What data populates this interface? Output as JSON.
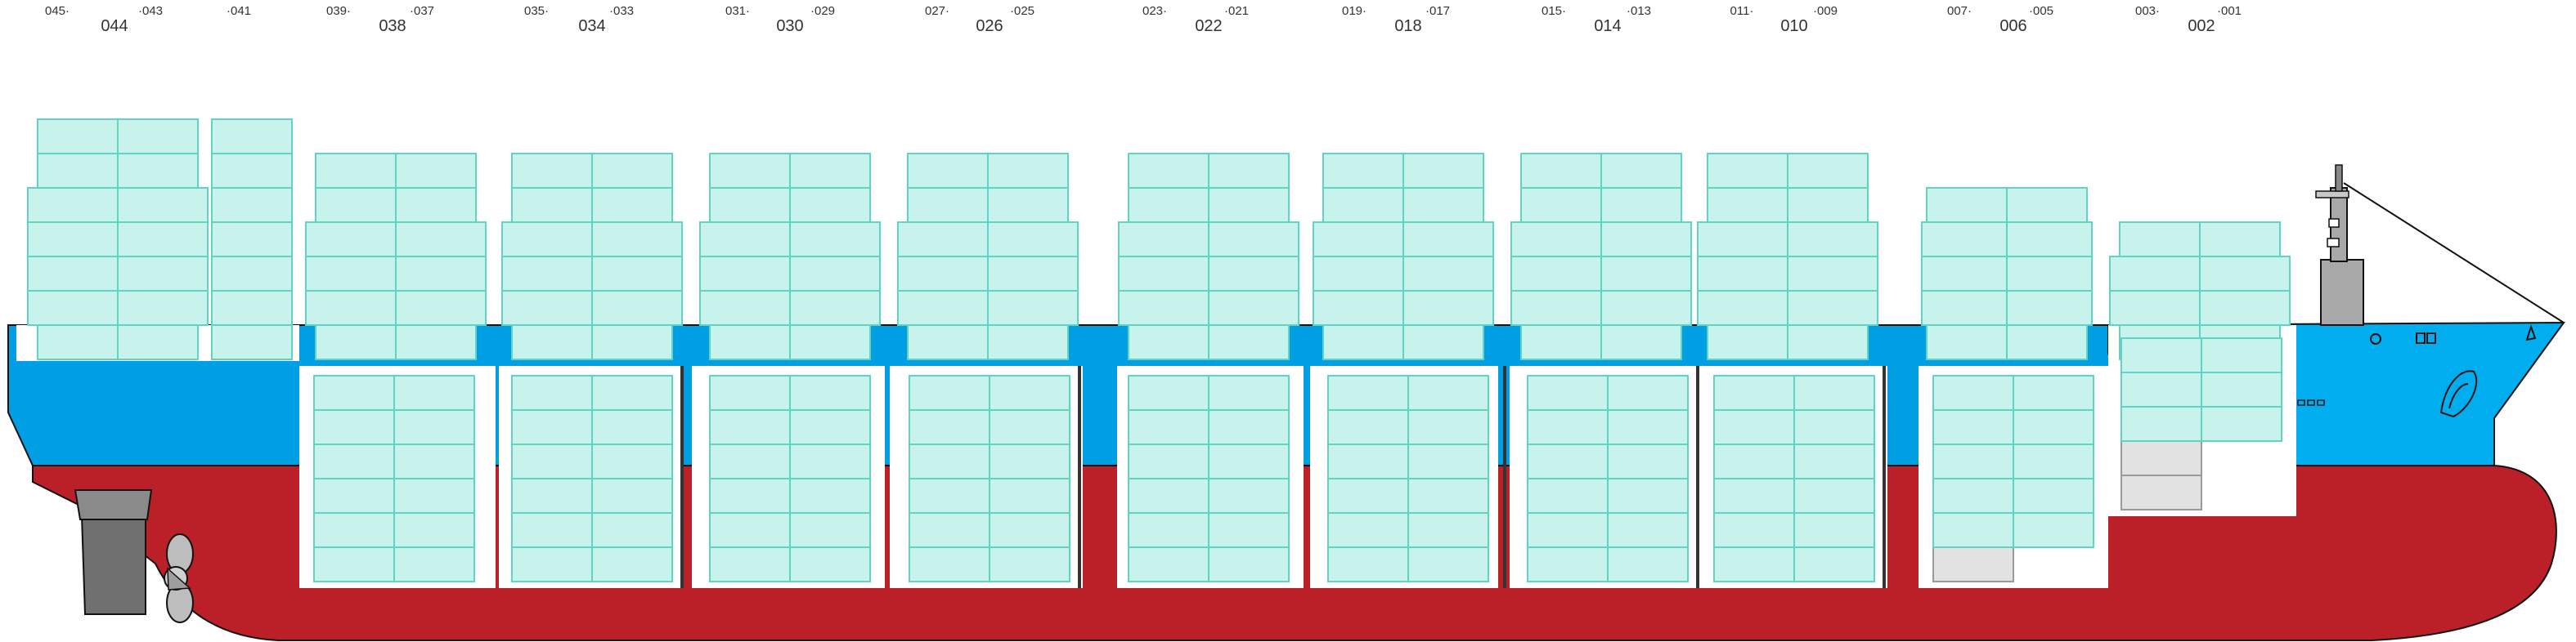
{
  "colors": {
    "hull_red": "#bb2029",
    "hull_blue": "#009fe3",
    "bow_blue": "#00adef",
    "hold_white": "#ffffff",
    "container_fill": "#c8f2ec",
    "container_stroke": "#5fd3c4",
    "empty_container_fill": "#e2e2e2",
    "machinery_gray": "#707070",
    "outline": "#111111"
  },
  "bays": [
    {
      "main": "044",
      "left": "045",
      "right": "043"
    },
    {
      "main": "",
      "left": "",
      "right": "041"
    },
    {
      "main": "038",
      "left": "039",
      "right": "037"
    },
    {
      "main": "034",
      "left": "035",
      "right": "033"
    },
    {
      "main": "030",
      "left": "031",
      "right": "029"
    },
    {
      "main": "026",
      "left": "027",
      "right": "025"
    },
    {
      "main": "022",
      "left": "023",
      "right": "021"
    },
    {
      "main": "018",
      "left": "019",
      "right": "017"
    },
    {
      "main": "014",
      "left": "015",
      "right": "013"
    },
    {
      "main": "010",
      "left": "011",
      "right": "009"
    },
    {
      "main": "006",
      "left": "007",
      "right": "005"
    },
    {
      "main": "002",
      "left": "003",
      "right": "001"
    }
  ],
  "deck_stacks": [
    {
      "bay": "044",
      "tiers": 7,
      "cols": 2,
      "layout": "wide-lower"
    },
    {
      "bay": "041",
      "tiers": 7,
      "cols": 1,
      "layout": "single"
    },
    {
      "bay": "038",
      "tiers": 6,
      "cols": 2,
      "layout": "wide-lower"
    },
    {
      "bay": "034",
      "tiers": 6,
      "cols": 2,
      "layout": "wide-lower"
    },
    {
      "bay": "030",
      "tiers": 6,
      "cols": 2,
      "layout": "wide-lower"
    },
    {
      "bay": "026",
      "tiers": 6,
      "cols": 2,
      "layout": "wide-lower"
    },
    {
      "bay": "022",
      "tiers": 6,
      "cols": 2,
      "layout": "wide-lower"
    },
    {
      "bay": "018",
      "tiers": 6,
      "cols": 2,
      "layout": "wide-lower"
    },
    {
      "bay": "014",
      "tiers": 6,
      "cols": 2,
      "layout": "wide-lower"
    },
    {
      "bay": "010",
      "tiers": 6,
      "cols": 2,
      "layout": "wide-lower"
    },
    {
      "bay": "006",
      "tiers": 5,
      "cols": 2,
      "layout": "wide-lower"
    },
    {
      "bay": "002",
      "tiers": 4,
      "cols": 2,
      "layout": "wide-middle"
    }
  ],
  "hold_stacks": [
    {
      "bay": "038",
      "tiers": 6,
      "empty": 0
    },
    {
      "bay": "034",
      "tiers": 6,
      "empty": 0
    },
    {
      "bay": "030",
      "tiers": 6,
      "empty": 0
    },
    {
      "bay": "026",
      "tiers": 6,
      "empty": 0
    },
    {
      "bay": "022",
      "tiers": 6,
      "empty": 0
    },
    {
      "bay": "018",
      "tiers": 6,
      "empty": 0
    },
    {
      "bay": "014",
      "tiers": 6,
      "empty": 0
    },
    {
      "bay": "010",
      "tiers": 6,
      "empty": 0
    },
    {
      "bay": "006",
      "tiers": 6,
      "empty": 1
    },
    {
      "bay": "002",
      "tiers": 5,
      "empty": 2
    }
  ]
}
